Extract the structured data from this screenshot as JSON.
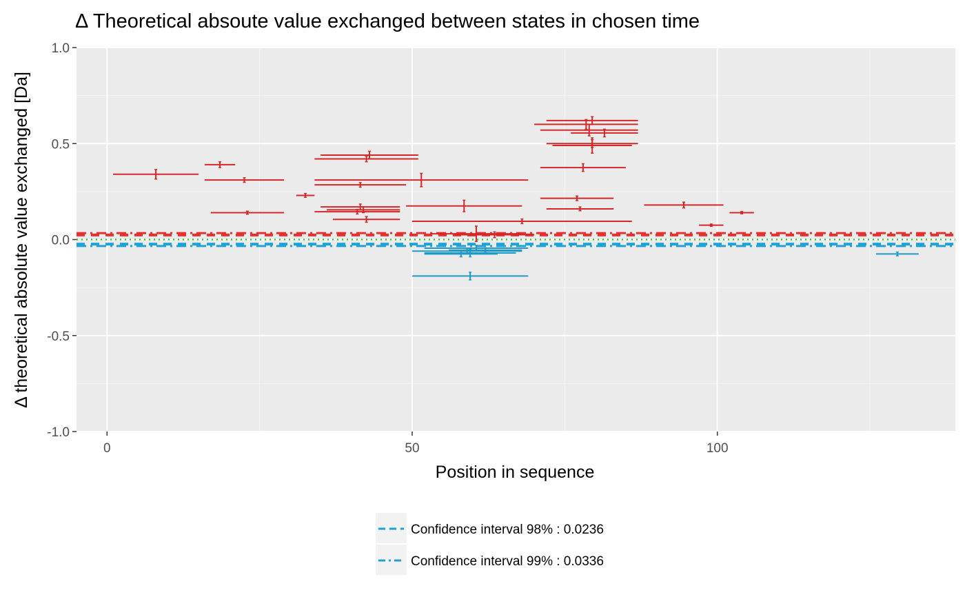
{
  "chart_data": {
    "type": "scatter",
    "title": "Δ Theoretical absoute value exchanged between states in chosen time",
    "xlabel": "Position in sequence",
    "ylabel": "Δ theoretical absolute value exchanged [Da]",
    "xlim": [
      -5,
      139
    ],
    "ylim": [
      -1.0,
      1.0
    ],
    "x_ticks": [
      0,
      50,
      100
    ],
    "x_tick_labels": [
      "0",
      "50",
      "100"
    ],
    "y_ticks": [
      -1.0,
      -0.5,
      0.0,
      0.5,
      1.0
    ],
    "y_tick_labels": [
      "-1.0",
      "-0.5",
      "0.0",
      "0.5",
      "1.0"
    ],
    "grid": true,
    "legend_position": "bottom",
    "colors": {
      "increase": "#d62728",
      "decrease": "#1f9ac9",
      "ci_positive": "#e8302f",
      "ci_negative": "#1fa3d6",
      "zero_line": "#33cc33"
    },
    "confidence_intervals": [
      {
        "label": "Confidence interval 98% : 0.0236",
        "value": 0.0236,
        "style": "dashed"
      },
      {
        "label": "Confidence interval 99% : 0.0336",
        "value": 0.0336,
        "style": "dotdash"
      }
    ],
    "peptides": [
      {
        "start": 1,
        "end": 15,
        "value": 0.34,
        "error": 0.025
      },
      {
        "start": 16,
        "end": 21,
        "value": 0.39,
        "error": 0.015
      },
      {
        "start": 16,
        "end": 29,
        "value": 0.31,
        "error": 0.012
      },
      {
        "start": 17,
        "end": 29,
        "value": 0.14,
        "error": 0.008
      },
      {
        "start": 31,
        "end": 34,
        "value": 0.23,
        "error": 0.01
      },
      {
        "start": 34,
        "end": 51,
        "value": 0.42,
        "error": 0.015
      },
      {
        "start": 34,
        "end": 69,
        "value": 0.31,
        "error": 0.035
      },
      {
        "start": 34,
        "end": 49,
        "value": 0.285,
        "error": 0.012
      },
      {
        "start": 34,
        "end": 48,
        "value": 0.145,
        "error": 0.012
      },
      {
        "start": 35,
        "end": 51,
        "value": 0.44,
        "error": 0.02
      },
      {
        "start": 35,
        "end": 48,
        "value": 0.17,
        "error": 0.015
      },
      {
        "start": 36,
        "end": 48,
        "value": 0.155,
        "error": 0.015
      },
      {
        "start": 37,
        "end": 48,
        "value": 0.105,
        "error": 0.015
      },
      {
        "start": 49,
        "end": 68,
        "value": 0.175,
        "error": 0.03
      },
      {
        "start": 50,
        "end": 86,
        "value": 0.095,
        "error": 0.012
      },
      {
        "start": 53,
        "end": 68,
        "value": 0.03,
        "error": 0.04
      },
      {
        "start": 57,
        "end": 70,
        "value": 0.025,
        "error": 0.015
      },
      {
        "start": 70,
        "end": 87,
        "value": 0.6,
        "error": 0.025
      },
      {
        "start": 72,
        "end": 87,
        "value": 0.62,
        "error": 0.02
      },
      {
        "start": 71,
        "end": 87,
        "value": 0.57,
        "error": 0.03
      },
      {
        "start": 76,
        "end": 87,
        "value": 0.555,
        "error": 0.02
      },
      {
        "start": 72,
        "end": 87,
        "value": 0.5,
        "error": 0.02
      },
      {
        "start": 73,
        "end": 86,
        "value": 0.49,
        "error": 0.04
      },
      {
        "start": 71,
        "end": 85,
        "value": 0.375,
        "error": 0.02
      },
      {
        "start": 71,
        "end": 83,
        "value": 0.215,
        "error": 0.012
      },
      {
        "start": 72,
        "end": 83,
        "value": 0.16,
        "error": 0.01
      },
      {
        "start": 88,
        "end": 101,
        "value": 0.18,
        "error": 0.015
      },
      {
        "start": 97,
        "end": 101,
        "value": 0.075,
        "error": 0.006
      },
      {
        "start": 102,
        "end": 106,
        "value": 0.14,
        "error": 0.006
      },
      {
        "start": 50,
        "end": 68,
        "value": -0.06,
        "error": 0.015
      },
      {
        "start": 52,
        "end": 69,
        "value": -0.045,
        "error": 0.015
      },
      {
        "start": 52,
        "end": 67,
        "value": -0.07,
        "error": 0.02
      },
      {
        "start": 52,
        "end": 64,
        "value": -0.075,
        "error": 0.015
      },
      {
        "start": 56,
        "end": 68,
        "value": -0.055,
        "error": 0.012
      },
      {
        "start": 50,
        "end": 69,
        "value": -0.19,
        "error": 0.02
      },
      {
        "start": 126,
        "end": 133,
        "value": -0.075,
        "error": 0.01
      }
    ]
  }
}
